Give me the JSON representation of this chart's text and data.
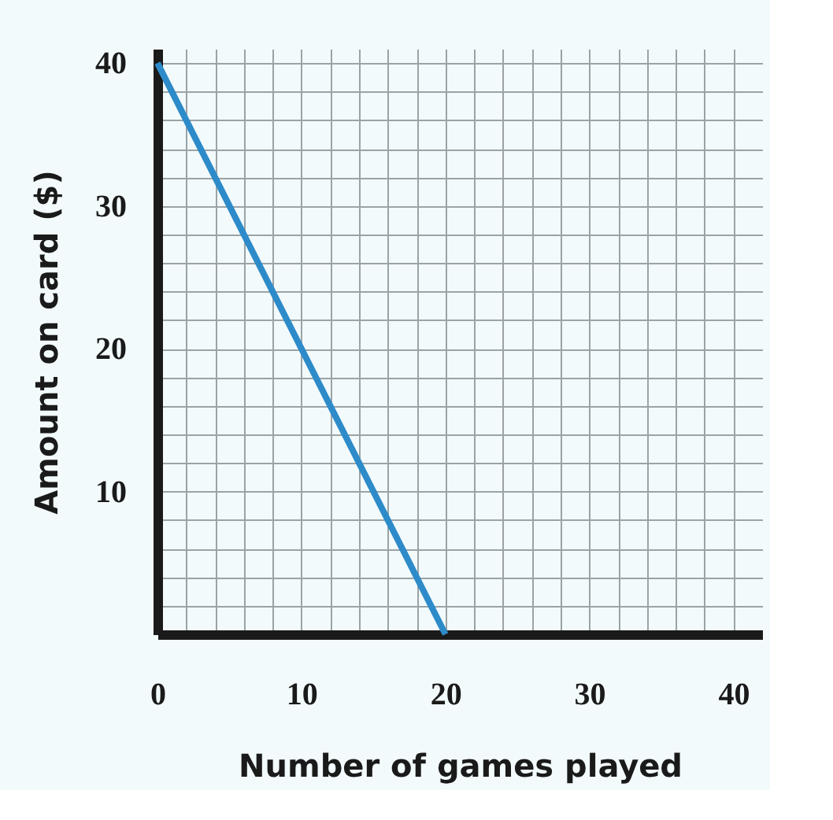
{
  "chart_data": {
    "type": "line",
    "xlabel": "Number of games played",
    "ylabel": "Amount on card ($)",
    "x": [
      0,
      20
    ],
    "series": [
      {
        "color": "#2e8bc9",
        "values": [
          40,
          0
        ]
      }
    ],
    "xlim": [
      0,
      42
    ],
    "ylim": [
      0,
      41
    ],
    "xticks": [
      0,
      {
        "value": 2,
        "label": null
      },
      {
        "value": 4,
        "label": null
      },
      {
        "value": 6,
        "label": null
      },
      {
        "value": 8,
        "label": null
      },
      10,
      {
        "value": 12,
        "label": null
      },
      {
        "value": 14,
        "label": null
      },
      {
        "value": 16,
        "label": null
      },
      {
        "value": 18,
        "label": null
      },
      20,
      {
        "value": 22,
        "label": null
      },
      {
        "value": 24,
        "label": null
      },
      {
        "value": 26,
        "label": null
      },
      {
        "value": 28,
        "label": null
      },
      30,
      {
        "value": 32,
        "label": null
      },
      {
        "value": 34,
        "label": null
      },
      {
        "value": 36,
        "label": null
      },
      {
        "value": 38,
        "label": null
      },
      40
    ],
    "yticks": [
      {
        "value": 0,
        "label": null
      },
      {
        "value": 2,
        "label": null
      },
      {
        "value": 4,
        "label": null
      },
      {
        "value": 6,
        "label": null
      },
      {
        "value": 8,
        "label": null
      },
      10,
      {
        "value": 12,
        "label": null
      },
      {
        "value": 14,
        "label": null
      },
      {
        "value": 16,
        "label": null
      },
      {
        "value": 18,
        "label": null
      },
      20,
      {
        "value": 22,
        "label": null
      },
      {
        "value": 24,
        "label": null
      },
      {
        "value": 26,
        "label": null
      },
      {
        "value": 28,
        "label": null
      },
      30,
      {
        "value": 32,
        "label": null
      },
      {
        "value": 34,
        "label": null
      },
      {
        "value": 36,
        "label": null
      },
      {
        "value": 38,
        "label": null
      },
      40
    ],
    "grid": true,
    "marker": "none",
    "line_style": "solid",
    "legend": false
  }
}
